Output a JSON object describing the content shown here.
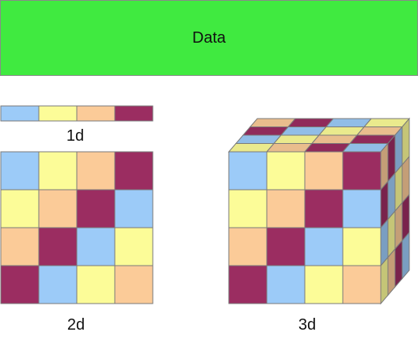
{
  "colors": {
    "banner": "#40ea40",
    "blue": "#9ccbf8",
    "yellow": "#fcfc98",
    "peach": "#fbcb98",
    "maroon": "#9b2d61",
    "border": "#7a7a7a"
  },
  "banner": {
    "label": "Data"
  },
  "one_d": {
    "label": "1d",
    "cells": [
      "blue",
      "yellow",
      "peach",
      "maroon"
    ]
  },
  "two_d": {
    "label": "2d",
    "grid": [
      [
        "blue",
        "yellow",
        "peach",
        "maroon"
      ],
      [
        "yellow",
        "peach",
        "maroon",
        "blue"
      ],
      [
        "peach",
        "maroon",
        "blue",
        "yellow"
      ],
      [
        "maroon",
        "blue",
        "yellow",
        "peach"
      ]
    ]
  },
  "three_d": {
    "label": "3d",
    "front": [
      [
        "blue",
        "yellow",
        "peach",
        "maroon"
      ],
      [
        "yellow",
        "peach",
        "maroon",
        "blue"
      ],
      [
        "peach",
        "maroon",
        "blue",
        "yellow"
      ],
      [
        "maroon",
        "blue",
        "yellow",
        "peach"
      ]
    ],
    "top": [
      [
        "peach",
        "maroon",
        "blue",
        "yellow"
      ],
      [
        "maroon",
        "blue",
        "yellow",
        "peach"
      ],
      [
        "blue",
        "yellow",
        "peach",
        "maroon"
      ],
      [
        "yellow",
        "peach",
        "maroon",
        "blue"
      ]
    ],
    "side": [
      [
        "peach",
        "maroon",
        "blue",
        "yellow"
      ],
      [
        "maroon",
        "blue",
        "yellow",
        "peach"
      ],
      [
        "blue",
        "yellow",
        "peach",
        "maroon"
      ],
      [
        "yellow",
        "peach",
        "maroon",
        "blue"
      ]
    ]
  }
}
